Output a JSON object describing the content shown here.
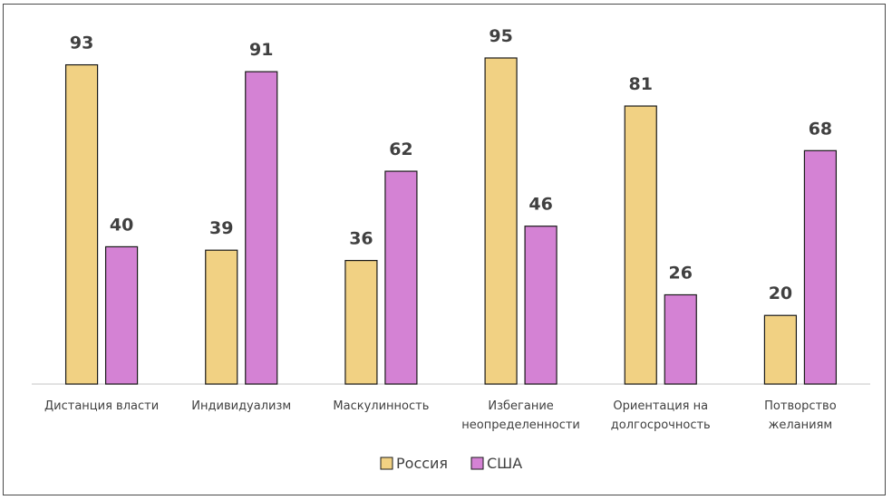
{
  "chart_data": {
    "type": "bar",
    "categories": [
      [
        "Дистанция власти"
      ],
      [
        "Индивидуализм"
      ],
      [
        "Маскулинность"
      ],
      [
        "Избегание",
        "неопределенности"
      ],
      [
        "Ориентация на",
        "долгосрочность"
      ],
      [
        "Потворство",
        "желаниям"
      ]
    ],
    "series": [
      {
        "name": "Россия",
        "values": [
          93,
          39,
          36,
          95,
          81,
          20
        ],
        "color": "#f1d183"
      },
      {
        "name": "США",
        "values": [
          40,
          91,
          62,
          46,
          26,
          68
        ],
        "color": "#d482d4"
      }
    ],
    "ylim": [
      0,
      100
    ],
    "grid": false,
    "legend": "bottom",
    "data_labels": true
  }
}
